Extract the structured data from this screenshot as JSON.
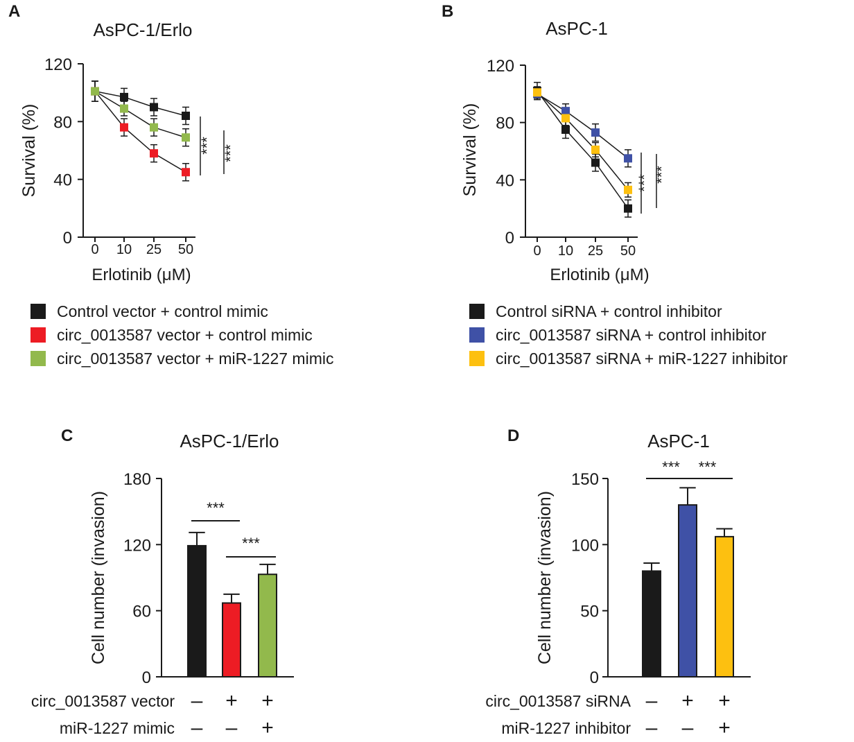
{
  "chart_data": [
    {
      "panel": "A",
      "type": "line",
      "title": "AsPC-1/Erlo",
      "xlabel": "Erlotinib (μM)",
      "ylabel": "Survival (%)",
      "categories": [
        "0",
        "10",
        "25",
        "50"
      ],
      "ylim": [
        0,
        120
      ],
      "yticks": [
        0,
        40,
        80,
        120
      ],
      "series": [
        {
          "name": "Control vector + control mimic",
          "color": "#1a1a1a",
          "values": [
            101,
            97,
            90,
            84
          ],
          "errors": [
            7,
            6,
            6,
            6
          ]
        },
        {
          "name": "circ_0013587 vector + control mimic",
          "color": "#ed1c24",
          "values": [
            101,
            76,
            58,
            45
          ],
          "errors": [
            7,
            6,
            6,
            6
          ]
        },
        {
          "name": "circ_0013587 vector + miR-1227 mimic",
          "color": "#92b94c",
          "values": [
            101,
            89,
            76,
            69
          ],
          "errors": [
            7,
            5,
            6,
            6
          ]
        }
      ],
      "annotations": [
        "***",
        "***"
      ]
    },
    {
      "panel": "B",
      "type": "line",
      "title": "AsPC-1",
      "xlabel": "Erlotinib (μM)",
      "ylabel": "Survival (%)",
      "categories": [
        "0",
        "10",
        "25",
        "50"
      ],
      "ylim": [
        0,
        120
      ],
      "yticks": [
        0,
        40,
        80,
        120
      ],
      "series": [
        {
          "name": "Control siRNA + control inhibitor",
          "color": "#1a1a1a",
          "values": [
            102,
            75,
            52,
            20
          ],
          "errors": [
            6,
            6,
            6,
            6
          ]
        },
        {
          "name": "circ_0013587 siRNA + control inhibitor",
          "color": "#3f51a6",
          "values": [
            100,
            88,
            73,
            55
          ],
          "errors": [
            4,
            5,
            6,
            6
          ]
        },
        {
          "name": "circ_0013587 siRNA + miR-1227 inhibitor",
          "color": "#fdc010",
          "values": [
            101,
            83,
            61,
            33
          ],
          "errors": [
            4,
            5,
            5,
            5
          ]
        }
      ],
      "annotations": [
        "***",
        "***"
      ]
    },
    {
      "panel": "C",
      "type": "bar",
      "title": "AsPC-1/Erlo",
      "ylabel": "Cell number (invasion)",
      "ylim": [
        0,
        180
      ],
      "yticks": [
        0,
        60,
        120,
        180
      ],
      "values": [
        119,
        67,
        93
      ],
      "errors": [
        12,
        8,
        9
      ],
      "colors": [
        "#1a1a1a",
        "#ed1c24",
        "#92b94c"
      ],
      "conditions": [
        {
          "label": "circ_0013587 vector",
          "signs": [
            "–",
            "+",
            "+"
          ]
        },
        {
          "label": "miR-1227 mimic",
          "signs": [
            "–",
            "–",
            "+"
          ]
        }
      ],
      "annotations": [
        "***",
        "***"
      ]
    },
    {
      "panel": "D",
      "type": "bar",
      "title": "AsPC-1",
      "ylabel": "Cell number (invasion)",
      "ylim": [
        0,
        150
      ],
      "yticks": [
        0,
        50,
        100,
        150
      ],
      "values": [
        80,
        130,
        106
      ],
      "errors": [
        6,
        13,
        6
      ],
      "colors": [
        "#1a1a1a",
        "#3f51a6",
        "#fdc010"
      ],
      "conditions": [
        {
          "label": "circ_0013587 siRNA",
          "signs": [
            "–",
            "+",
            "+"
          ]
        },
        {
          "label": "miR-1227 inhibitor",
          "signs": [
            "–",
            "–",
            "+"
          ]
        }
      ],
      "annotations": [
        "***",
        "***"
      ]
    }
  ]
}
